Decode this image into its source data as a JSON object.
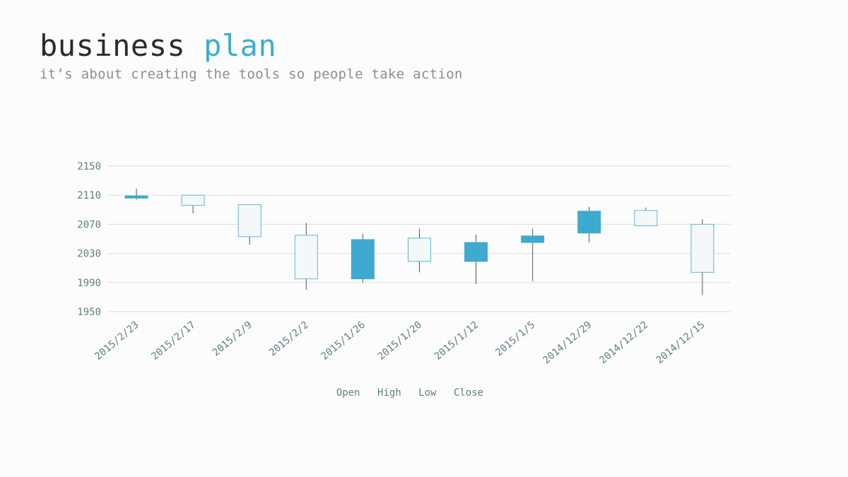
{
  "header": {
    "title_main": "business",
    "title_accent": "plan",
    "subtitle": "it’s about creating the tools so people take action"
  },
  "colors": {
    "background": "#fcfcfc",
    "title": "#2b2b2b",
    "accent": "#3aaecb",
    "subtitle": "#8e8e8e",
    "axis_text": "#5f7f7f",
    "gridline": "#dcdcdc",
    "rising_fill": "#f5f8f8",
    "rising_stroke": "#5cb8d0",
    "falling_fill": "#3eaacf",
    "wick": "#555555"
  },
  "chart_data": {
    "type": "candlestick",
    "title": "",
    "xlabel": "",
    "ylabel": "",
    "ylim": [
      1950,
      2150
    ],
    "yticks": [
      2150,
      2110,
      2070,
      2030,
      1990,
      1950
    ],
    "grid": true,
    "legend_position": "bottom",
    "legend": [
      "Open",
      "High",
      "Low",
      "Close"
    ],
    "categories": [
      "2015/2/23",
      "2015/2/17",
      "2015/2/9",
      "2015/2/2",
      "2015/1/26",
      "2015/1/20",
      "2015/1/12",
      "2015/1/5",
      "2014/12/29",
      "2014/12/22",
      "2014/12/15"
    ],
    "series": [
      {
        "date": "2015/2/23",
        "open": 2109,
        "high": 2119,
        "low": 2104,
        "close": 2106
      },
      {
        "date": "2015/2/17",
        "open": 2096,
        "high": 2110,
        "low": 2085,
        "close": 2110
      },
      {
        "date": "2015/2/9",
        "open": 2053,
        "high": 2097,
        "low": 2042,
        "close": 2097
      },
      {
        "date": "2015/2/2",
        "open": 1995,
        "high": 2072,
        "low": 1980,
        "close": 2055
      },
      {
        "date": "2015/1/26",
        "open": 2049,
        "high": 2057,
        "low": 1990,
        "close": 1995
      },
      {
        "date": "2015/1/20",
        "open": 2019,
        "high": 2064,
        "low": 2004,
        "close": 2051
      },
      {
        "date": "2015/1/12",
        "open": 2045,
        "high": 2056,
        "low": 1988,
        "close": 2019
      },
      {
        "date": "2015/1/5",
        "open": 2054,
        "high": 2064,
        "low": 1992,
        "close": 2045
      },
      {
        "date": "2014/12/29",
        "open": 2088,
        "high": 2094,
        "low": 2045,
        "close": 2058
      },
      {
        "date": "2014/12/22",
        "open": 2068,
        "high": 2093,
        "low": 2068,
        "close": 2089
      },
      {
        "date": "2014/12/15",
        "open": 2004,
        "high": 2077,
        "low": 1973,
        "close": 2070
      }
    ]
  }
}
